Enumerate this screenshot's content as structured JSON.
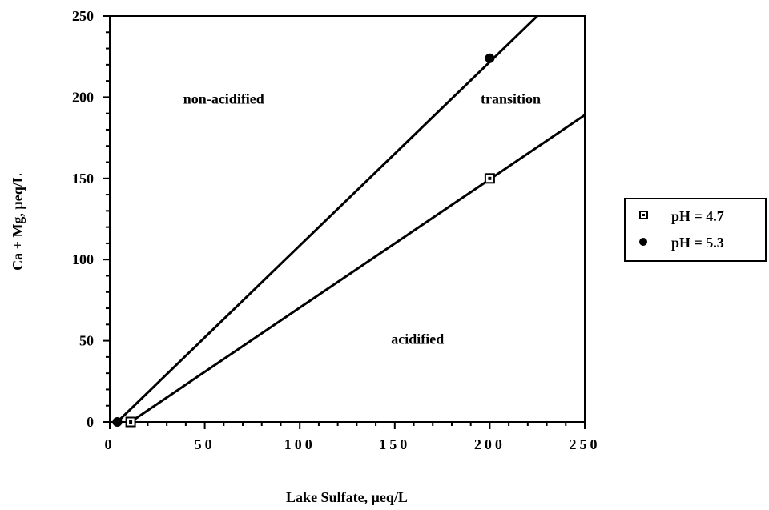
{
  "chart_data": {
    "type": "line",
    "title": "",
    "xlabel": "Lake Sulfate, µeq/L",
    "ylabel": "Ca + Mg, µeq/L",
    "xlim": [
      0,
      250
    ],
    "ylim": [
      0,
      250
    ],
    "x_ticks": [
      0,
      50,
      100,
      150,
      200,
      250
    ],
    "y_ticks": [
      0,
      50,
      100,
      150,
      200,
      250
    ],
    "grid": false,
    "legend_position": "right",
    "series": [
      {
        "name": "pH = 4.7",
        "marker": "square",
        "line": [
          [
            11,
            0
          ],
          [
            250,
            189
          ]
        ],
        "points": [
          [
            11,
            0
          ],
          [
            200,
            150
          ]
        ]
      },
      {
        "name": "pH = 5.3",
        "marker": "circle",
        "line": [
          [
            4,
            0
          ],
          [
            225,
            250
          ]
        ],
        "points": [
          [
            4,
            0
          ],
          [
            200,
            224
          ]
        ]
      }
    ],
    "annotations": [
      {
        "text": "non-acidified",
        "x": 60,
        "y": 196
      },
      {
        "text": "transition",
        "x": 211,
        "y": 196
      },
      {
        "text": "acidified",
        "x": 162,
        "y": 48
      }
    ]
  }
}
